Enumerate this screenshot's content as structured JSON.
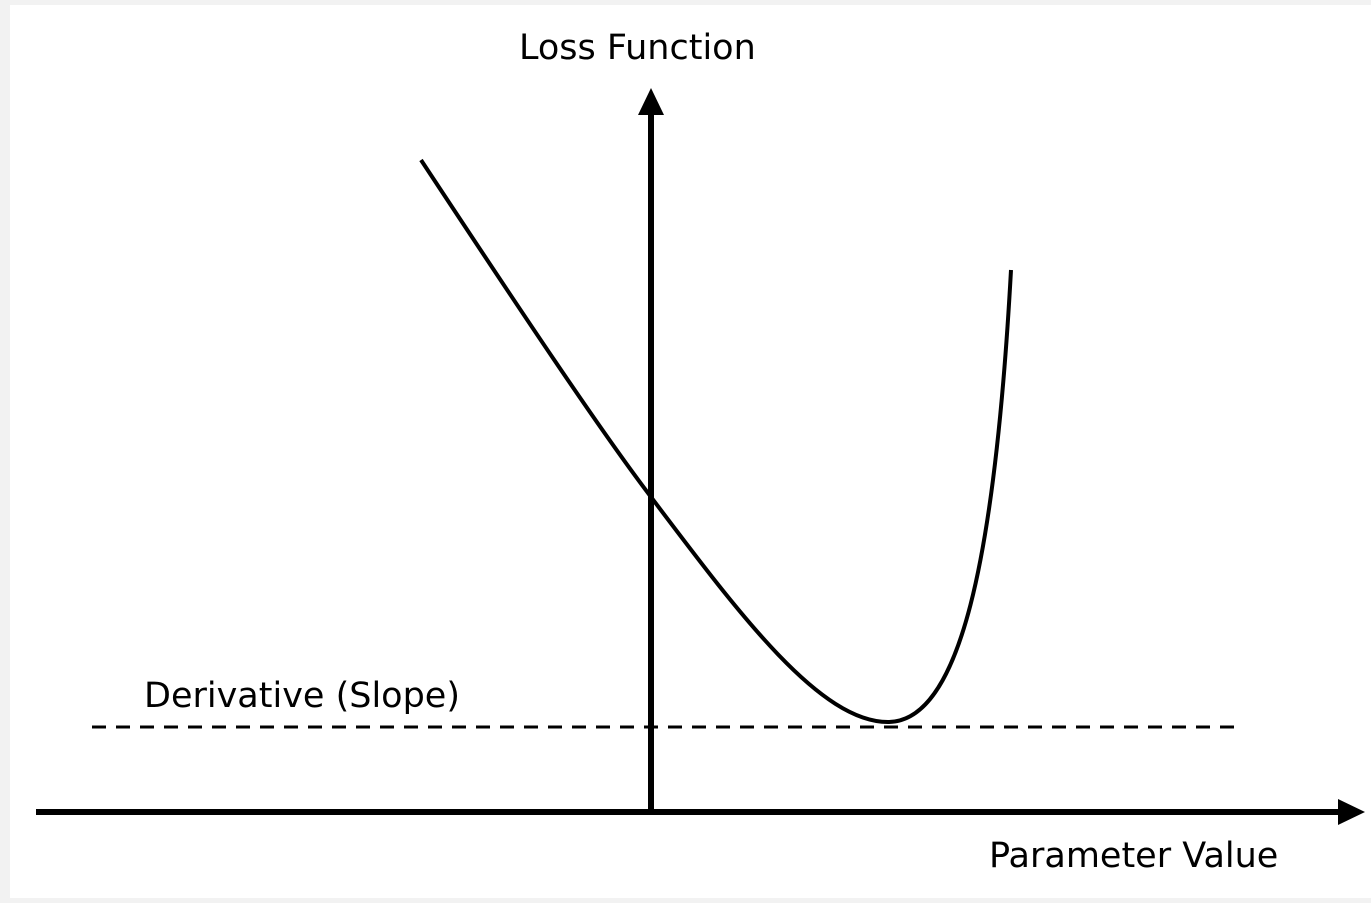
{
  "y_axis_label": "Loss Function",
  "x_axis_label": "Parameter Value",
  "tangent_label": "Derivative (Slope)"
}
